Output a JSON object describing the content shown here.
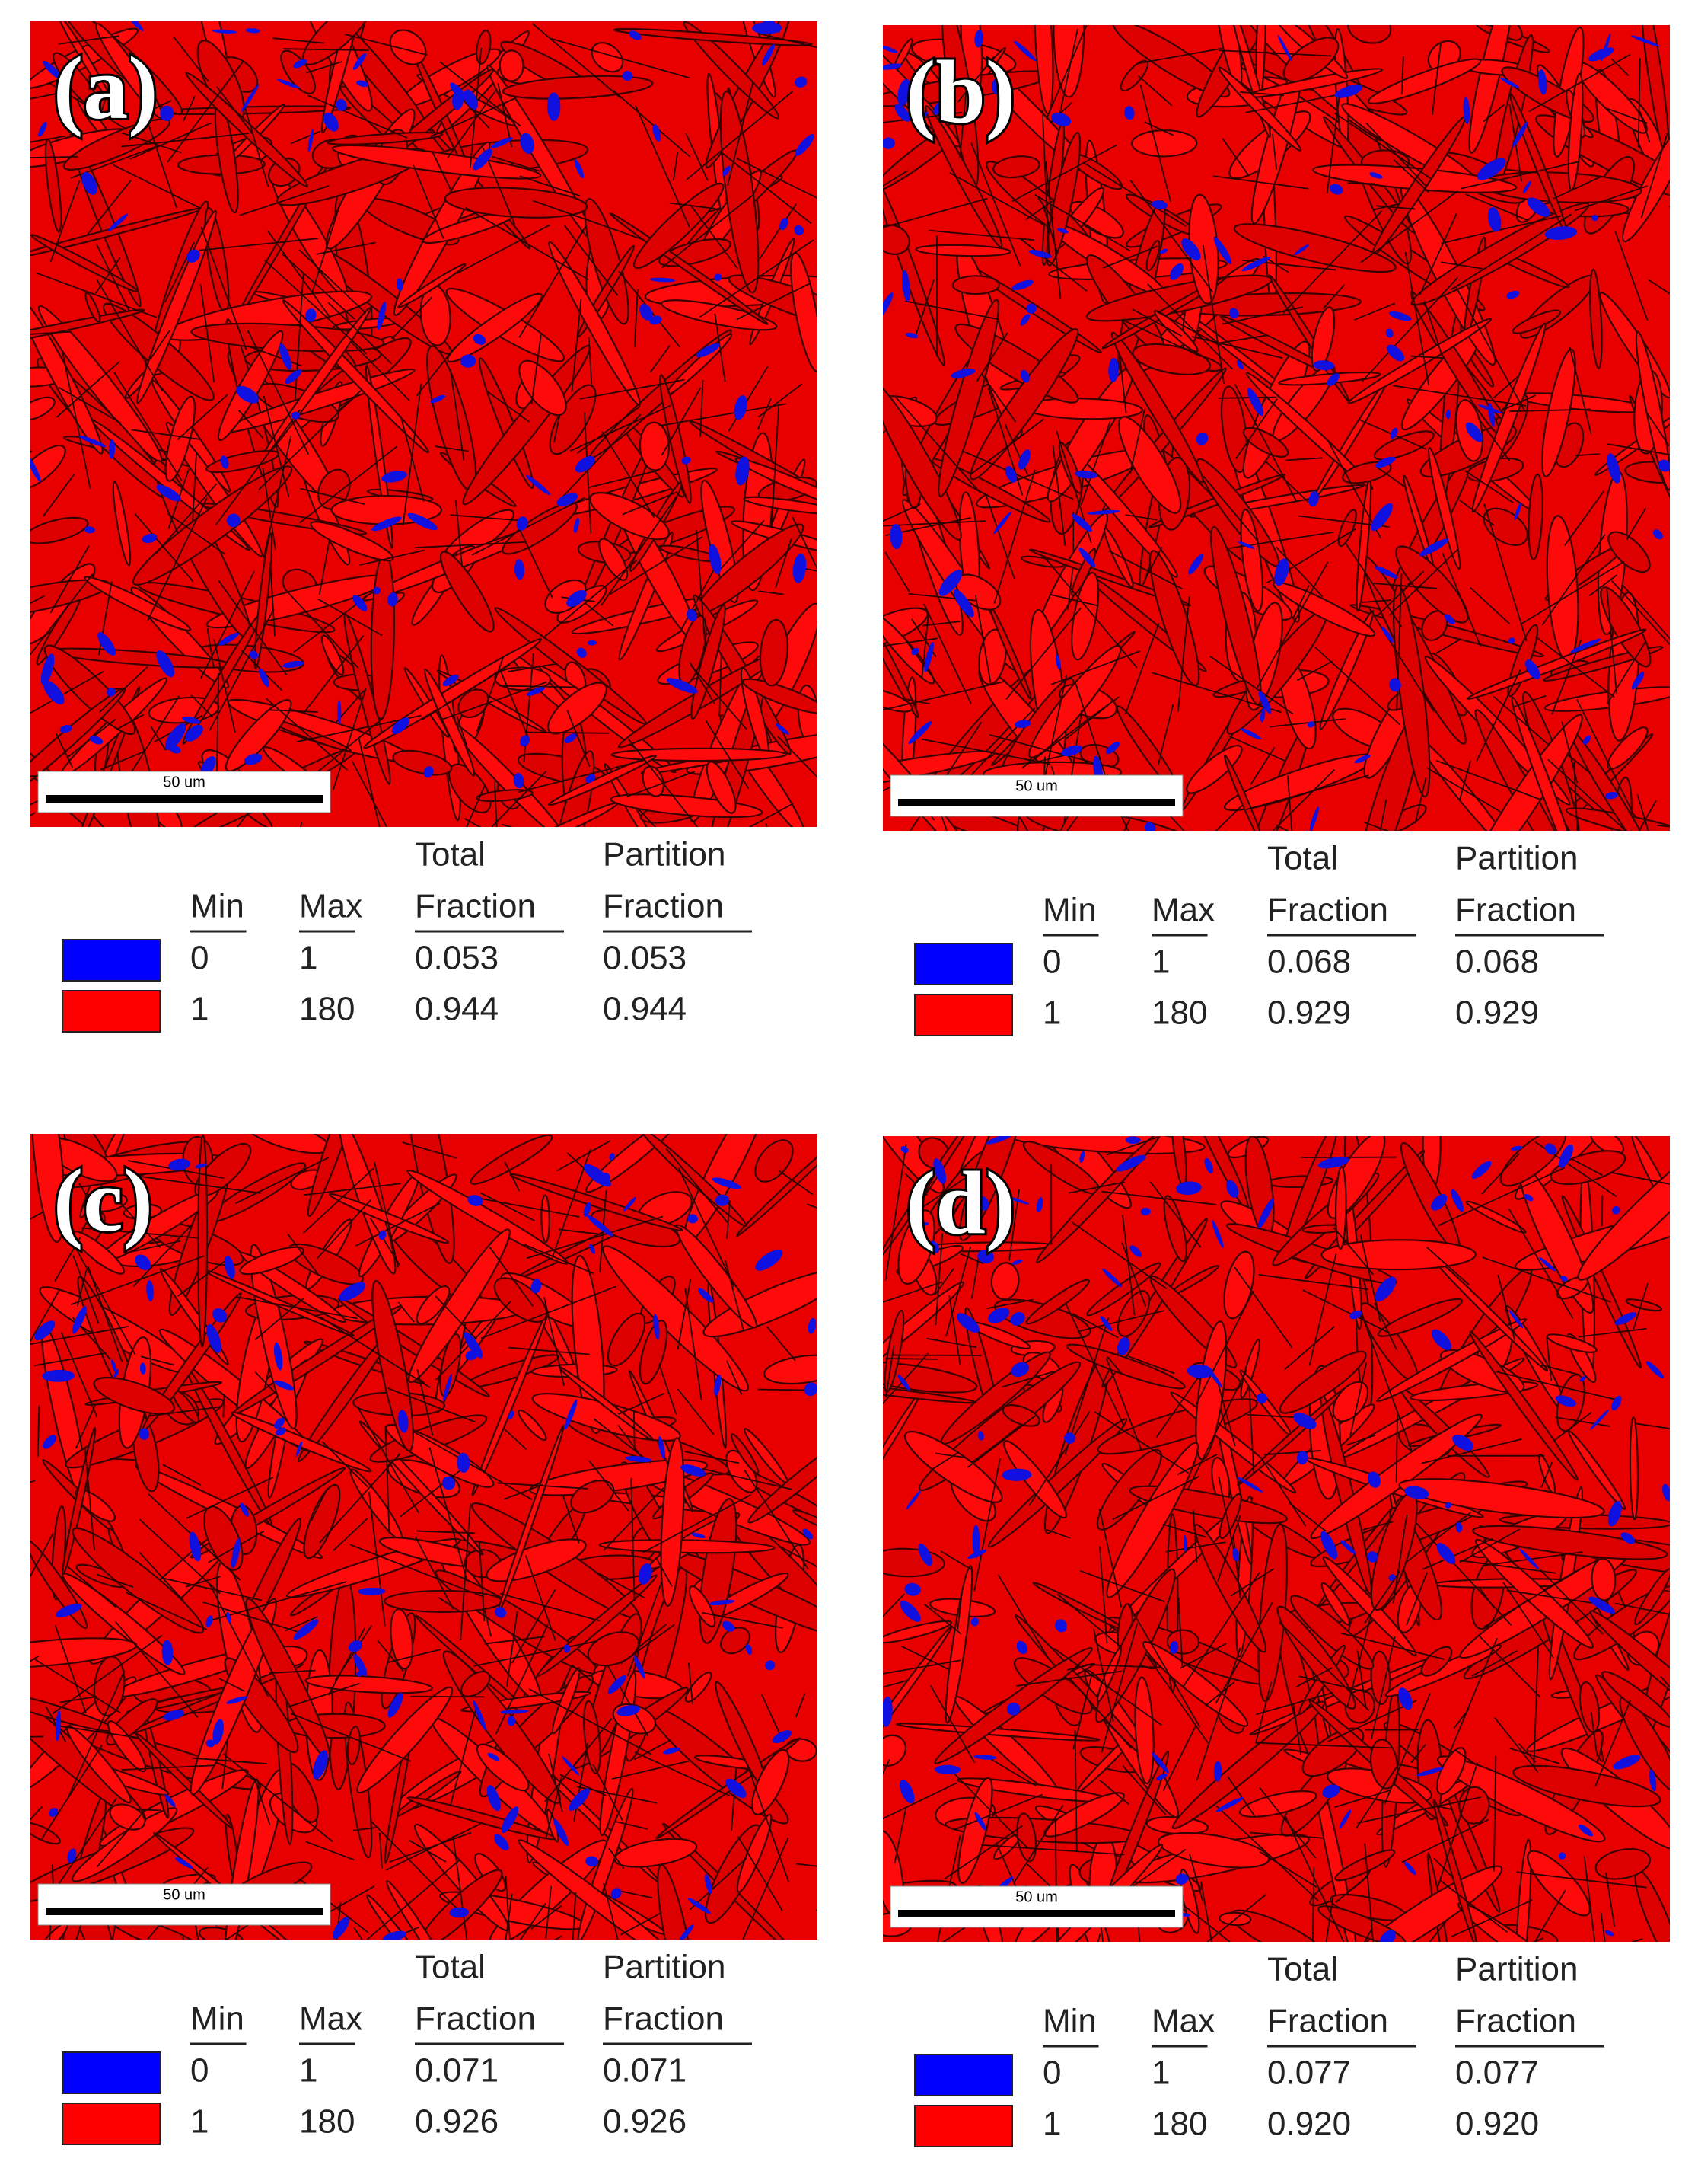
{
  "panels": [
    {
      "label": "(a)",
      "scale_bar": "50 um",
      "legend": {
        "header": [
          [
            "Min"
          ],
          [
            "Max"
          ],
          [
            "Total",
            "Fraction"
          ],
          [
            "Partition",
            "Fraction"
          ]
        ],
        "rows": [
          {
            "color": "#0000ff",
            "min": "0",
            "max": "1",
            "total": "0.053",
            "partition": "0.053"
          },
          {
            "color": "#ff0000",
            "min": "1",
            "max": "180",
            "total": "0.944",
            "partition": "0.944"
          }
        ]
      }
    },
    {
      "label": "(b)",
      "scale_bar": "50 um",
      "legend": {
        "header": [
          [
            "Min"
          ],
          [
            "Max"
          ],
          [
            "Total",
            "Fraction"
          ],
          [
            "Partition",
            "Fraction"
          ]
        ],
        "rows": [
          {
            "color": "#0000ff",
            "min": "0",
            "max": "1",
            "total": "0.068",
            "partition": "0.068"
          },
          {
            "color": "#ff0000",
            "min": "1",
            "max": "180",
            "total": "0.929",
            "partition": "0.929"
          }
        ]
      }
    },
    {
      "label": "(c)",
      "scale_bar": "50 um",
      "legend": {
        "header": [
          [
            "Min"
          ],
          [
            "Max"
          ],
          [
            "Total",
            "Fraction"
          ],
          [
            "Partition",
            "Fraction"
          ]
        ],
        "rows": [
          {
            "color": "#0000ff",
            "min": "0",
            "max": "1",
            "total": "0.071",
            "partition": "0.071"
          },
          {
            "color": "#ff0000",
            "min": "1",
            "max": "180",
            "total": "0.926",
            "partition": "0.926"
          }
        ]
      }
    },
    {
      "label": "(d)",
      "scale_bar": "50 um",
      "legend": {
        "header": [
          [
            "Min"
          ],
          [
            "Max"
          ],
          [
            "Total",
            "Fraction"
          ],
          [
            "Partition",
            "Fraction"
          ]
        ],
        "rows": [
          {
            "color": "#0000ff",
            "min": "0",
            "max": "1",
            "total": "0.077",
            "partition": "0.077"
          },
          {
            "color": "#ff0000",
            "min": "1",
            "max": "180",
            "total": "0.920",
            "partition": "0.920"
          }
        ]
      }
    }
  ]
}
